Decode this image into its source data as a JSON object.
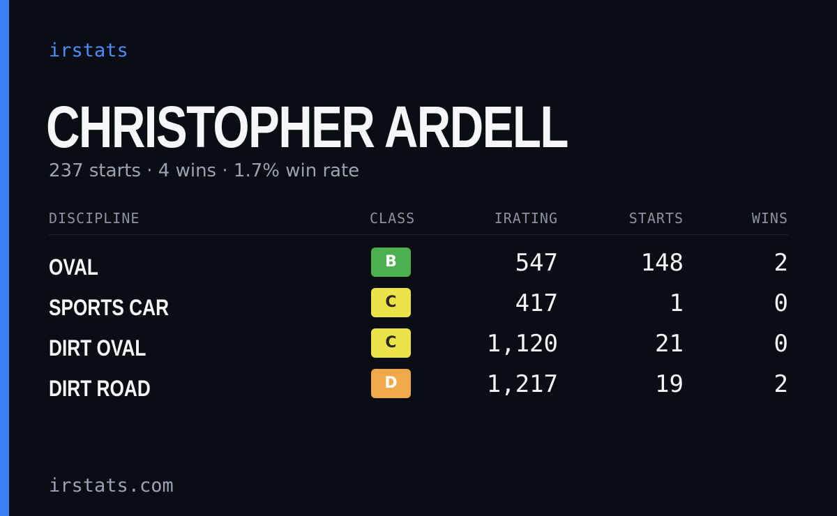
{
  "brand": "irstats",
  "driver": {
    "name": "CHRISTOPHER ARDELL",
    "summary": "237 starts · 4 wins · 1.7% win rate"
  },
  "table": {
    "headers": {
      "discipline": "DISCIPLINE",
      "class": "CLASS",
      "irating": "IRATING",
      "starts": "STARTS",
      "wins": "WINS"
    },
    "rows": [
      {
        "discipline": "OVAL",
        "class": "B",
        "irating": "547",
        "starts": "148",
        "wins": "2"
      },
      {
        "discipline": "SPORTS CAR",
        "class": "C",
        "irating": "417",
        "starts": "1",
        "wins": "0"
      },
      {
        "discipline": "DIRT OVAL",
        "class": "C",
        "irating": "1,120",
        "starts": "21",
        "wins": "0"
      },
      {
        "discipline": "DIRT ROAD",
        "class": "D",
        "irating": "1,217",
        "starts": "19",
        "wins": "2"
      }
    ]
  },
  "colors": {
    "accent": "#3b82f6",
    "background": "#0a0d14",
    "class_B": "#4caf50",
    "class_C": "#ece24a",
    "class_D": "#efa94a"
  },
  "footer": "irstats.com"
}
